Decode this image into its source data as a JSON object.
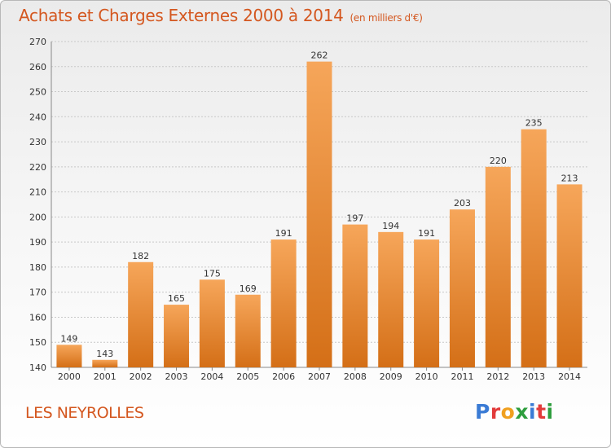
{
  "title": "Achats et Charges Externes 2000 à 2014",
  "unit": "(en milliers d'€)",
  "commune": "LES NEYROLLES",
  "logo": {
    "text": "Proxiti",
    "letters": [
      {
        "ch": "P",
        "color": "#3a7bd5"
      },
      {
        "ch": "r",
        "color": "#e23b3b"
      },
      {
        "ch": "o",
        "color": "#f0a020"
      },
      {
        "ch": "x",
        "color": "#2e9e3e"
      },
      {
        "ch": "i",
        "color": "#3a7bd5"
      },
      {
        "ch": "t",
        "color": "#e23b3b"
      },
      {
        "ch": "i",
        "color": "#2e9e3e"
      }
    ]
  },
  "colors": {
    "title": "#d4571f",
    "bar_top": "#f6a65a",
    "bar_bottom": "#d46f17",
    "grid": "#c8c8c8",
    "axis_text": "#333333"
  },
  "chart_data": {
    "type": "bar",
    "categories": [
      "2000",
      "2001",
      "2002",
      "2003",
      "2004",
      "2005",
      "2006",
      "2007",
      "2008",
      "2009",
      "2010",
      "2011",
      "2012",
      "2013",
      "2014"
    ],
    "values": [
      149,
      143,
      182,
      165,
      175,
      169,
      191,
      262,
      197,
      194,
      191,
      203,
      220,
      235,
      213
    ],
    "ylim": [
      140,
      270
    ],
    "yticks": [
      140,
      150,
      160,
      170,
      180,
      190,
      200,
      210,
      220,
      230,
      240,
      250,
      260,
      270
    ],
    "grid": true,
    "data_labels": true
  }
}
